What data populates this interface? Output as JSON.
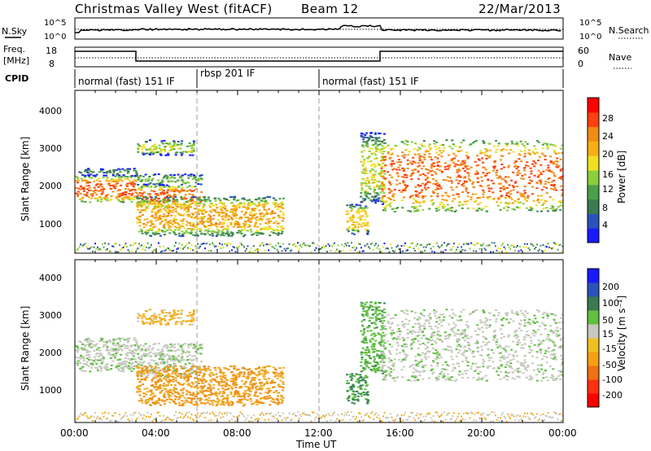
{
  "header": {
    "title": "Christmas Valley West (fitACF)",
    "beam": "Beam 12",
    "date": "22/Mar/2013"
  },
  "top_panels": {
    "nsky_label": "N.Sky",
    "nsky_ticks": [
      "10^5",
      "10^0"
    ],
    "nsearch_label": "N.Search",
    "nsearch_ticks": [
      "10^5",
      "10^0"
    ],
    "freq_label_line1": "Freq.",
    "freq_label_line2": "[MHz]",
    "freq_ticks": [
      "18",
      "8"
    ],
    "nave_label": "Nave",
    "nave_ticks": [
      "60",
      "0"
    ],
    "cpid_label": "CPID"
  },
  "cpid_segments": [
    {
      "label": "normal (fast) 151 IF",
      "start_hour": 0,
      "end_hour": 6
    },
    {
      "label": "rbsp 201 IF",
      "start_hour": 6,
      "end_hour": 12
    },
    {
      "label": "normal (fast) 151 IF",
      "start_hour": 12,
      "end_hour": 24
    }
  ],
  "axes": {
    "xlabel": "Time UT",
    "x_tick_labels": [
      "00:00",
      "04:00",
      "08:00",
      "12:00",
      "16:00",
      "20:00",
      "00:00"
    ],
    "ylabel": "Slant Range [km]",
    "y_tick_labels": [
      "1000",
      "2000",
      "3000",
      "4000"
    ]
  },
  "colorbars": {
    "power": {
      "label": "Power [dB]",
      "tick_labels": [
        "4",
        "8",
        "12",
        "16",
        "20",
        "24",
        "28"
      ],
      "colors": [
        "#1a1aff",
        "#2a52b8",
        "#3c7a50",
        "#4aa04a",
        "#8ccd3c",
        "#f0e020",
        "#f5b014",
        "#f08c14",
        "#ff4010",
        "#ff0000"
      ]
    },
    "velocity": {
      "label": "Velocity [m s⁻¹]",
      "tick_labels": [
        "200",
        "100",
        "50",
        "15",
        "-15",
        "-50",
        "-100",
        "-200"
      ],
      "colors": [
        "#1a1aff",
        "#2a52b8",
        "#3c7a50",
        "#60c040",
        "#c8c8c0",
        "#f0c020",
        "#f5a014",
        "#f07014",
        "#ff3010",
        "#ff0000"
      ]
    }
  },
  "chart_data": {
    "type": "heatmap",
    "panels": [
      "Power [dB]",
      "Velocity [m s⁻¹]"
    ],
    "xlabel": "Time UT",
    "ylabel": "Slant Range [km]",
    "xlim_hours": [
      0,
      24
    ],
    "ylim_km": [
      180,
      4500
    ],
    "frequency_mhz": [
      {
        "start_hour": 0,
        "end_hour": 3,
        "value": 18
      },
      {
        "start_hour": 3,
        "end_hour": 15,
        "value": 9
      },
      {
        "start_hour": 15,
        "end_hour": 24,
        "value": 18
      }
    ],
    "scatter_regions": [
      {
        "t0": 0.0,
        "t1": 3.0,
        "r0": 1550,
        "r1": 2250,
        "power_db": 26,
        "velocity": 5
      },
      {
        "t0": 0.0,
        "t1": 3.0,
        "r0": 2250,
        "r1": 2450,
        "power_db": 10,
        "velocity": 5
      },
      {
        "t0": 3.0,
        "t1": 6.2,
        "r0": 1400,
        "r1": 2000,
        "power_db": 26,
        "velocity": 5
      },
      {
        "t0": 3.0,
        "t1": 6.2,
        "r0": 2000,
        "r1": 2300,
        "power_db": 14,
        "velocity": 5
      },
      {
        "t0": 3.0,
        "t1": 5.8,
        "r0": 2800,
        "r1": 3200,
        "power_db": 16,
        "velocity": -30
      },
      {
        "t0": 3.0,
        "t1": 10.2,
        "r0": 650,
        "r1": 1700,
        "power_db": 22,
        "velocity": -55
      },
      {
        "t0": 13.3,
        "t1": 14.4,
        "r0": 700,
        "r1": 1500,
        "power_db": 20,
        "velocity": 60
      },
      {
        "t0": 14.0,
        "t1": 15.2,
        "r0": 1500,
        "r1": 3400,
        "power_db": 18,
        "velocity": 40
      },
      {
        "t0": 15.0,
        "t1": 24.0,
        "r0": 1300,
        "r1": 3200,
        "power_db": 26,
        "velocity": 5
      }
    ]
  }
}
